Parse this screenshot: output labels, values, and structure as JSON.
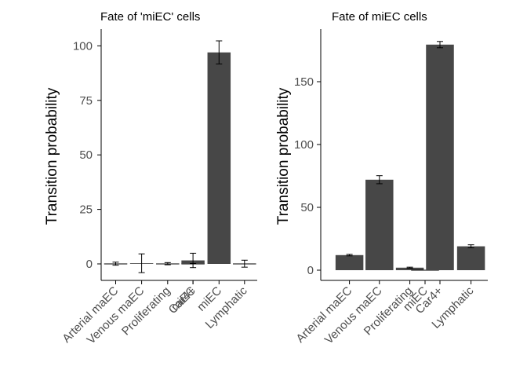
{
  "colors": {
    "bar": "#474747",
    "axis": "#000000",
    "tick_text": "#4d4d4d",
    "background": "#ffffff"
  },
  "chart_data": [
    {
      "type": "bar",
      "title": "Fate of 'miEC' cells",
      "xlabel": "",
      "ylabel": "Transition probability",
      "categories": [
        "Arterial maEC",
        "Venous maEC",
        "Proliferating",
        "miEC",
        "Car4+",
        "miEC",
        "Lymphatic"
      ],
      "values": [
        0.1,
        0.3,
        0.1,
        0.1,
        1.6,
        97,
        0.1
      ],
      "errors": [
        0.7,
        4.3,
        0.5,
        0.1,
        3.3,
        5.3,
        1.6
      ],
      "ylim": [
        0,
        108
      ],
      "yticks": [
        0,
        25,
        50,
        75,
        100
      ],
      "grid": false,
      "legend": "none"
    },
    {
      "type": "bar",
      "title": "Fate of miEC cells",
      "xlabel": "",
      "ylabel": "Transition probability",
      "categories": [
        "Arterial maEC",
        "Venous maEC",
        "Proliferating",
        "miEC",
        "Car4+",
        "Lymphatic"
      ],
      "values": [
        12,
        72,
        2,
        0,
        179.5,
        19
      ],
      "errors": [
        0.6,
        3.2,
        0.4,
        0,
        2.5,
        1.2
      ],
      "ylim": [
        0,
        190
      ],
      "yticks": [
        0,
        50,
        100,
        150
      ],
      "grid": false,
      "legend": "none"
    }
  ]
}
